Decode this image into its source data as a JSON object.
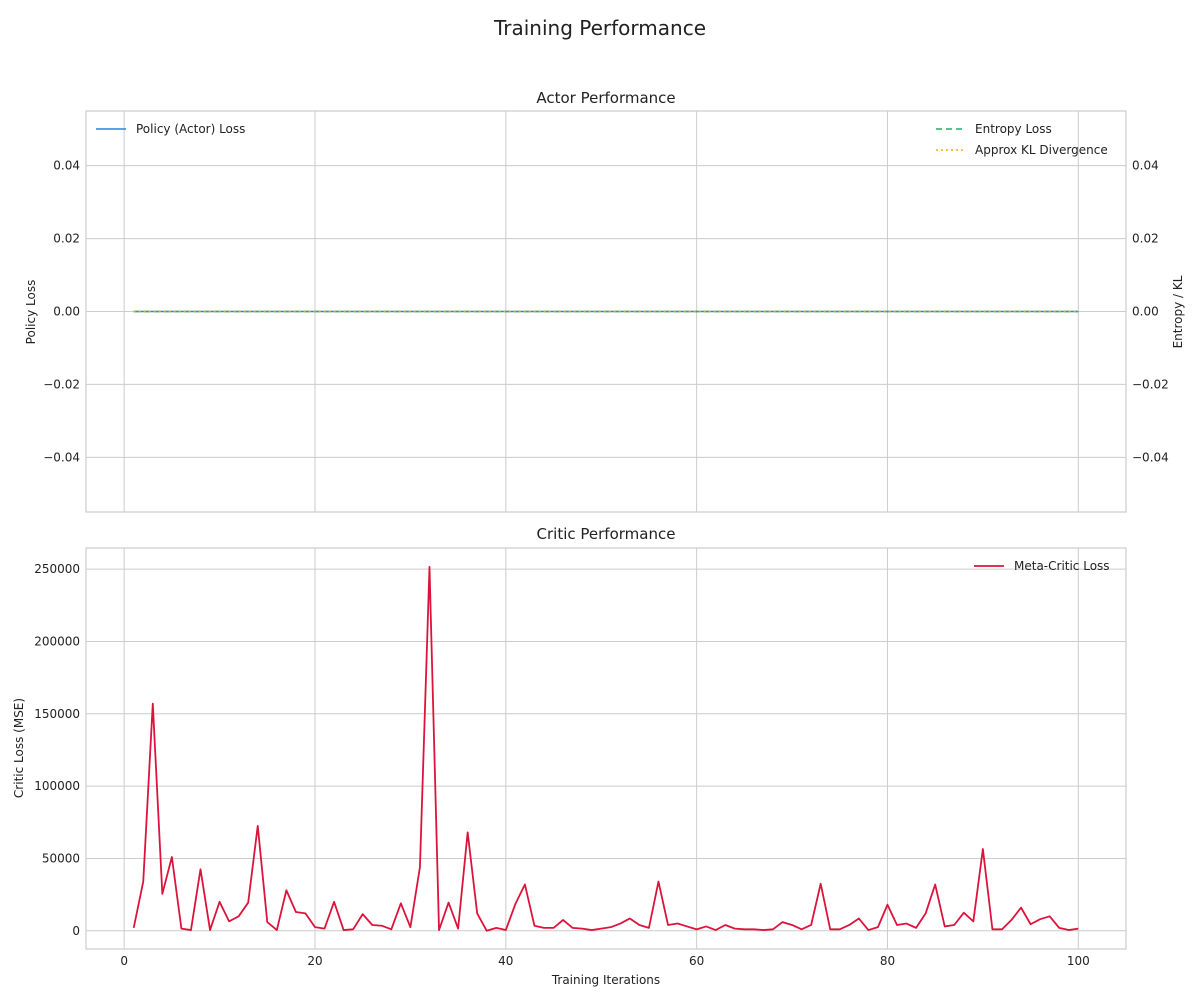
{
  "figure": {
    "title": "Training Performance"
  },
  "chart_data": [
    {
      "type": "line",
      "title": "Actor Performance",
      "xlabel": "",
      "ylabel": "Policy Loss",
      "y2label": "Entropy / KL",
      "xlim": [
        -4,
        105
      ],
      "ylim": [
        -0.055,
        0.055
      ],
      "y2lim": [
        -0.055,
        0.055
      ],
      "xticks": [
        0,
        20,
        40,
        60,
        80,
        100
      ],
      "yticks": [
        "-0.04",
        "-0.02",
        "0.00",
        "0.02",
        "0.04"
      ],
      "ytick_values": [
        -0.04,
        -0.02,
        0.0,
        0.02,
        0.04
      ],
      "grid": true,
      "x_range": [
        1,
        100
      ],
      "series": [
        {
          "name": "Policy (Actor) Loss",
          "axis": "left",
          "style": "solid",
          "color": "#1e88e5",
          "constant": 0.0
        },
        {
          "name": "Entropy Loss",
          "axis": "right",
          "style": "dashed",
          "color": "#27ae60",
          "constant": 0.0
        },
        {
          "name": "Approx KL Divergence",
          "axis": "right",
          "style": "dotted",
          "color": "#f5a800",
          "constant": 0.0
        }
      ],
      "legend_left": "upper-left",
      "legend_right": "upper-right"
    },
    {
      "type": "line",
      "title": "Critic Performance",
      "xlabel": "Training Iterations",
      "ylabel": "Critic Loss (MSE)",
      "xlim": [
        -4,
        105
      ],
      "ylim": [
        -12600,
        264600
      ],
      "xticks": [
        0,
        20,
        40,
        60,
        80,
        100
      ],
      "yticks": [
        "0",
        "50000",
        "100000",
        "150000",
        "200000",
        "250000"
      ],
      "ytick_values": [
        0,
        50000,
        100000,
        150000,
        200000,
        250000
      ],
      "grid": true,
      "legend": "upper-right",
      "series": [
        {
          "name": "Meta-Critic Loss",
          "color": "#dc143c",
          "x_start": 1,
          "values": [
            2000,
            34000,
            157000,
            25500,
            51000,
            1500,
            500,
            42500,
            500,
            20000,
            6500,
            10000,
            19500,
            72500,
            6000,
            500,
            28000,
            13000,
            12000,
            2500,
            1500,
            20000,
            500,
            1000,
            11500,
            4000,
            3500,
            1000,
            19000,
            2500,
            44000,
            251500,
            500,
            19500,
            1500,
            68000,
            12000,
            0,
            2000,
            500,
            18500,
            32000,
            3500,
            2000,
            2000,
            7500,
            2000,
            1500,
            500,
            1500,
            2500,
            5000,
            8500,
            4000,
            2000,
            34000,
            4000,
            5000,
            3000,
            1000,
            3000,
            500,
            4000,
            1500,
            1000,
            1000,
            500,
            1000,
            6000,
            4000,
            1000,
            4000,
            32500,
            1000,
            1000,
            4000,
            8500,
            500,
            2500,
            18000,
            4000,
            5000,
            2000,
            12000,
            32000,
            3000,
            4000,
            12500,
            6500,
            56500,
            1000,
            1000,
            7500,
            16000,
            4500,
            8000,
            10000,
            2000,
            500,
            1500
          ]
        }
      ]
    }
  ]
}
